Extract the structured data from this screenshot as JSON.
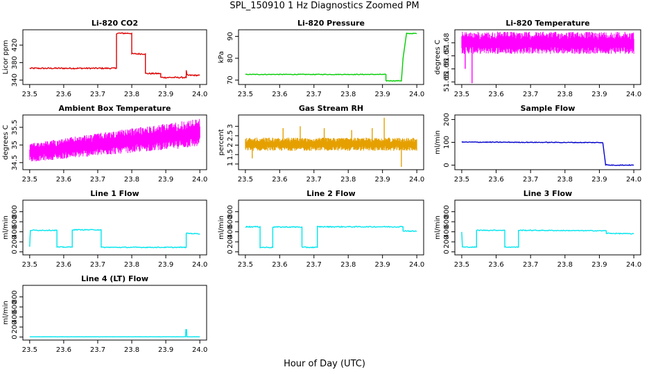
{
  "title": "SPL_150910  1 Hz Diagnostics Zoomed PM",
  "xlabel": "Hour of Day (UTC)",
  "chart_data": [
    {
      "type": "line",
      "title": "Li-820 CO2",
      "ylabel": "Licor ppm",
      "color": "#dd0000",
      "xlim": [
        23.48,
        24.02
      ],
      "ylim": [
        330,
        455
      ],
      "xticks": [
        23.5,
        23.6,
        23.7,
        23.8,
        23.9,
        24.0
      ],
      "yticks": [
        340,
        380,
        420
      ],
      "x": [
        23.5,
        23.755,
        23.755,
        23.8,
        23.8,
        23.84,
        23.84,
        23.885,
        23.885,
        23.96,
        23.96,
        23.962,
        23.965,
        24.0
      ],
      "y": [
        367,
        367,
        447,
        447,
        400,
        400,
        355,
        355,
        346,
        346,
        363,
        352,
        351,
        351
      ],
      "noise": 1.5
    },
    {
      "type": "line",
      "title": "Li-820 Pressure",
      "ylabel": "kPa",
      "color": "#00cc00",
      "xlim": [
        23.48,
        24.02
      ],
      "ylim": [
        68,
        93
      ],
      "xticks": [
        23.5,
        23.6,
        23.7,
        23.8,
        23.9,
        24.0
      ],
      "yticks": [
        70,
        80,
        90
      ],
      "x": [
        23.5,
        23.91,
        23.91,
        23.955,
        23.96,
        23.97,
        23.97,
        24.0
      ],
      "y": [
        72.6,
        72.6,
        69.7,
        69.7,
        80,
        91.3,
        91.3,
        91.3
      ],
      "noise": 0.15
    },
    {
      "type": "band",
      "title": "Li-820 Temperature",
      "ylabel": "degrees C",
      "color": "#ff00ff",
      "xlim": [
        23.48,
        24.02
      ],
      "ylim": [
        51.648,
        51.69
      ],
      "xticks": [
        23.5,
        23.6,
        23.7,
        23.8,
        23.9,
        24.0
      ],
      "yticks": [
        51.65,
        51.66,
        51.67,
        51.68
      ],
      "low": 51.6715,
      "high": 51.6885,
      "spikes_x": [
        23.51,
        23.53
      ],
      "spikes_y": [
        51.66,
        51.649
      ]
    },
    {
      "type": "band",
      "title": "Ambient Box Temperature",
      "ylabel": "degrees C",
      "color": "#ff00ff",
      "xlim": [
        23.48,
        24.02
      ],
      "ylim": [
        34.3,
        35.85
      ],
      "xticks": [
        23.5,
        23.6,
        23.7,
        23.8,
        23.9,
        24.0
      ],
      "yticks": [
        34.5,
        35.0,
        35.5
      ],
      "low_start": 34.52,
      "low_end": 34.95,
      "high_start": 35.05,
      "high_end": 35.75
    },
    {
      "type": "band",
      "title": "Gas Stream RH",
      "ylabel": "percent",
      "color": "#e5a000",
      "xlim": [
        23.48,
        24.02
      ],
      "ylim": [
        0.7,
        3.6
      ],
      "xticks": [
        23.5,
        23.6,
        23.7,
        23.8,
        23.9,
        24.0
      ],
      "yticks": [
        1.0,
        1.5,
        2.0,
        2.5,
        3.0
      ],
      "low": 1.7,
      "high": 2.4,
      "spikes_x": [
        23.52,
        23.61,
        23.66,
        23.73,
        23.81,
        23.87,
        23.905,
        23.955
      ],
      "spikes_y": [
        1.3,
        2.9,
        3.0,
        2.9,
        2.8,
        2.9,
        3.45,
        0.85
      ]
    },
    {
      "type": "line",
      "title": "Sample Flow",
      "ylabel": "ml/min",
      "color": "#0000cc",
      "xlim": [
        23.48,
        24.02
      ],
      "ylim": [
        -20,
        220
      ],
      "xticks": [
        23.5,
        23.6,
        23.7,
        23.8,
        23.9,
        24.0
      ],
      "yticks": [
        0,
        100,
        200
      ],
      "x": [
        23.5,
        23.91,
        23.918,
        23.93,
        24.0
      ],
      "y": [
        101,
        99,
        2,
        0,
        0
      ],
      "noise": 1.5
    },
    {
      "type": "line",
      "title": "Line 1 Flow",
      "ylabel": "ml/min",
      "color": "#00e5ee",
      "xlim": [
        23.48,
        24.02
      ],
      "ylim": [
        -60,
        1030
      ],
      "xticks": [
        23.5,
        23.6,
        23.7,
        23.8,
        23.9,
        24.0
      ],
      "yticks": [
        0,
        200,
        400,
        600,
        800
      ],
      "x": [
        23.5,
        23.502,
        23.58,
        23.58,
        23.625,
        23.625,
        23.71,
        23.71,
        23.96,
        23.96,
        24.0
      ],
      "y": [
        100,
        430,
        430,
        95,
        95,
        440,
        440,
        90,
        90,
        370,
        360
      ],
      "noise": 8
    },
    {
      "type": "line",
      "title": "Line 2 Flow",
      "ylabel": "ml/min",
      "color": "#00e5ee",
      "xlim": [
        23.48,
        24.02
      ],
      "ylim": [
        -60,
        1030
      ],
      "xticks": [
        23.5,
        23.6,
        23.7,
        23.8,
        23.9,
        24.0
      ],
      "yticks": [
        0,
        200,
        400,
        600,
        800
      ],
      "x": [
        23.5,
        23.543,
        23.543,
        23.58,
        23.58,
        23.665,
        23.665,
        23.71,
        23.71,
        23.96,
        23.96,
        24.0
      ],
      "y": [
        500,
        500,
        90,
        90,
        495,
        495,
        90,
        90,
        500,
        500,
        420,
        410
      ],
      "noise": 10
    },
    {
      "type": "line",
      "title": "Line 3 Flow",
      "ylabel": "ml/min",
      "color": "#00e5ee",
      "xlim": [
        23.48,
        24.02
      ],
      "ylim": [
        -60,
        1030
      ],
      "xticks": [
        23.5,
        23.6,
        23.7,
        23.8,
        23.9,
        24.0
      ],
      "yticks": [
        0,
        200,
        400,
        600,
        800
      ],
      "x": [
        23.5,
        23.502,
        23.543,
        23.543,
        23.625,
        23.625,
        23.665,
        23.665,
        23.92,
        23.92,
        24.0
      ],
      "y": [
        400,
        95,
        95,
        430,
        430,
        95,
        95,
        430,
        420,
        370,
        360
      ],
      "noise": 8
    },
    {
      "type": "line",
      "title": "Line 4 (LT) Flow",
      "ylabel": "ml/min",
      "color": "#00e5ee",
      "xlim": [
        23.48,
        24.02
      ],
      "ylim": [
        -60,
        1030
      ],
      "xticks": [
        23.5,
        23.6,
        23.7,
        23.8,
        23.9,
        24.0
      ],
      "yticks": [
        0,
        200,
        400,
        600,
        800
      ],
      "x": [
        23.5,
        23.958,
        23.959,
        23.961,
        23.962,
        24.0
      ],
      "y": [
        5,
        5,
        150,
        150,
        5,
        5
      ],
      "noise": 1
    }
  ]
}
